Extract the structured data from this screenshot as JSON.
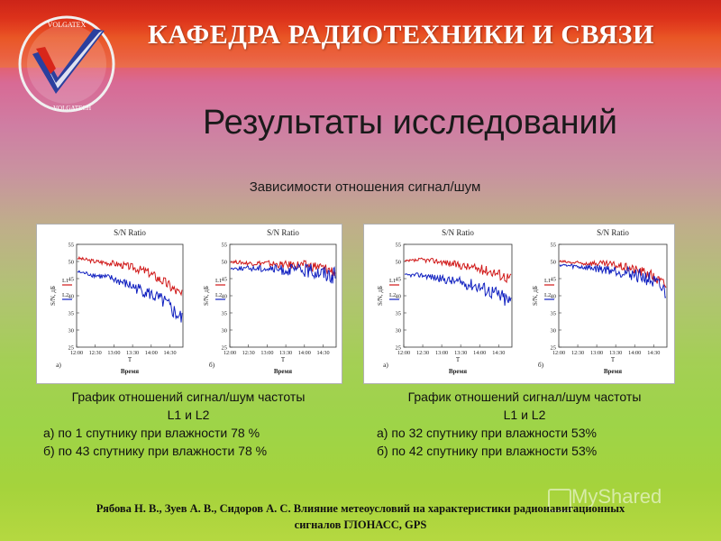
{
  "header": {
    "title": "КАФЕДРА РАДИОТЕХНИКИ И СВЯЗИ",
    "logo": {
      "text_top": "VOLGATEX",
      "text_bottom": "VOLGATECH",
      "icon": "checkmark-logo-icon"
    }
  },
  "slide": {
    "title": "Результаты исследований",
    "subtitle": "Зависимости отношения сигнал/шум"
  },
  "colors": {
    "L1": "#d01818",
    "L2": "#1020c0"
  },
  "panels": [
    {
      "caption_line1": "График отношений сигнал/шум частоты",
      "caption_line2": "L1 и L2",
      "caption_a": "а) по 1 спутнику при влажности 78 %",
      "caption_b": "б) по 43 спутнику при влажности 78 %"
    },
    {
      "caption_line1": "График отношений сигнал/шум частоты",
      "caption_line2": "L1 и L2",
      "caption_a": "а) по 32 спутнику при влажности 53%",
      "caption_b": "б) по 42 спутнику при влажности 53%"
    }
  ],
  "chart_common": {
    "chart_title": "S/N Ratio",
    "ylabel": "S/N, дБ",
    "xlabel_top": "T",
    "xlabel_bottom": "Время",
    "legend": [
      "L1",
      "L2"
    ],
    "yticks": [
      "55",
      "50",
      "45",
      "40",
      "35",
      "30",
      "25"
    ],
    "xticks": [
      "12:00",
      "12:30",
      "13:00",
      "13:30",
      "14:00",
      "14:30"
    ]
  },
  "chart_data": [
    {
      "type": "line",
      "title": "S/N Ratio",
      "panel_label": "а)",
      "xlabel": "Время",
      "ylabel": "S/N, дБ",
      "ylim": [
        25,
        55
      ],
      "x": [
        "12:00",
        "12:30",
        "13:00",
        "13:30",
        "14:00",
        "14:30",
        "14:50"
      ],
      "series": [
        {
          "name": "L1",
          "values": [
            51,
            50,
            49.5,
            48.5,
            47,
            44,
            40
          ]
        },
        {
          "name": "L2",
          "values": [
            47,
            46,
            45,
            43,
            41,
            38,
            33
          ]
        }
      ]
    },
    {
      "type": "line",
      "title": "S/N Ratio",
      "panel_label": "б)",
      "xlabel": "Время",
      "ylabel": "S/N, дБ",
      "ylim": [
        25,
        55
      ],
      "x": [
        "12:00",
        "12:30",
        "13:00",
        "13:30",
        "14:00",
        "14:30",
        "14:50"
      ],
      "series": [
        {
          "name": "L1",
          "values": [
            50,
            49.5,
            49.5,
            49,
            49,
            48.5,
            47
          ]
        },
        {
          "name": "L2",
          "values": [
            48,
            48,
            48,
            47.5,
            47.5,
            47,
            46
          ]
        }
      ]
    },
    {
      "type": "line",
      "title": "S/N Ratio",
      "panel_label": "а)",
      "xlabel": "Время",
      "ylabel": "S/N, дБ",
      "ylim": [
        25,
        55
      ],
      "x": [
        "12:00",
        "12:30",
        "13:00",
        "13:30",
        "14:00",
        "14:30",
        "14:50"
      ],
      "series": [
        {
          "name": "L1",
          "values": [
            50,
            50.5,
            50,
            49,
            48,
            47,
            45
          ]
        },
        {
          "name": "L2",
          "values": [
            46,
            46,
            45,
            44,
            43,
            41,
            38
          ]
        }
      ]
    },
    {
      "type": "line",
      "title": "S/N Ratio",
      "panel_label": "б)",
      "xlabel": "Время",
      "ylabel": "S/N, дБ",
      "ylim": [
        25,
        55
      ],
      "x": [
        "12:00",
        "12:30",
        "13:00",
        "13:30",
        "14:00",
        "14:30",
        "14:50"
      ],
      "series": [
        {
          "name": "L1",
          "values": [
            50,
            49.5,
            49.5,
            49,
            48,
            46.5,
            43
          ]
        },
        {
          "name": "L2",
          "values": [
            49,
            48.5,
            48,
            47.5,
            46.5,
            45,
            41
          ]
        }
      ]
    }
  ],
  "footer": {
    "line1": "Рябова Н. В., Зуев А. В., Сидоров А. С. Влияние метеоусловий на характеристики радионавигационных",
    "line2": "сигналов ГЛОНАСС, GPS"
  },
  "watermark": "MyShared"
}
